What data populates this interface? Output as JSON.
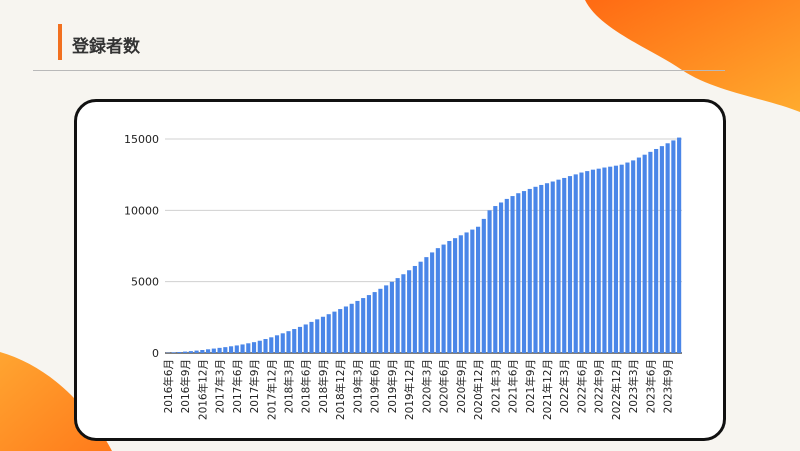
{
  "title": "登録者数",
  "theme": {
    "accent": "#f2701f",
    "bar_color": "#4a86e8",
    "blob_color": "#ff8a1d"
  },
  "chart_data": {
    "type": "bar",
    "title": "",
    "xlabel": "",
    "ylabel": "",
    "ylim": [
      0,
      15000
    ],
    "yticks": [
      0,
      5000,
      10000,
      15000
    ],
    "grid": true,
    "legend": "none",
    "x_tick_labels": [
      "2016年6月",
      "2016年9月",
      "2016年12月",
      "2017年3月",
      "2017年6月",
      "2017年9月",
      "2017年12月",
      "2018年3月",
      "2018年6月",
      "2018年9月",
      "2018年12月",
      "2019年3月",
      "2019年6月",
      "2019年9月",
      "2019年12月",
      "2020年3月",
      "2020年6月",
      "2020年9月",
      "2020年12月",
      "2021年3月",
      "2021年6月",
      "2021年9月",
      "2021年12月",
      "2022年3月",
      "2022年6月",
      "2022年9月",
      "2022年12月",
      "2023年3月",
      "2023年6月",
      "2023年9月"
    ],
    "categories": [
      "2016年6月",
      "2016年7月",
      "2016年8月",
      "2016年9月",
      "2016年10月",
      "2016年11月",
      "2016年12月",
      "2017年1月",
      "2017年2月",
      "2017年3月",
      "2017年4月",
      "2017年5月",
      "2017年6月",
      "2017年7月",
      "2017年8月",
      "2017年9月",
      "2017年10月",
      "2017年11月",
      "2017年12月",
      "2018年1月",
      "2018年2月",
      "2018年3月",
      "2018年4月",
      "2018年5月",
      "2018年6月",
      "2018年7月",
      "2018年8月",
      "2018年9月",
      "2018年10月",
      "2018年11月",
      "2018年12月",
      "2019年1月",
      "2019年2月",
      "2019年3月",
      "2019年4月",
      "2019年5月",
      "2019年6月",
      "2019年7月",
      "2019年8月",
      "2019年9月",
      "2019年10月",
      "2019年11月",
      "2019年12月",
      "2020年1月",
      "2020年2月",
      "2020年3月",
      "2020年4月",
      "2020年5月",
      "2020年6月",
      "2020年7月",
      "2020年8月",
      "2020年9月",
      "2020年10月",
      "2020年11月",
      "2020年12月",
      "2021年1月",
      "2021年2月",
      "2021年3月",
      "2021年4月",
      "2021年5月",
      "2021年6月",
      "2021年7月",
      "2021年8月",
      "2021年9月",
      "2021年10月",
      "2021年11月",
      "2021年12月",
      "2022年1月",
      "2022年2月",
      "2022年3月",
      "2022年4月",
      "2022年5月",
      "2022年6月",
      "2022年7月",
      "2022年8月",
      "2022年9月",
      "2022年10月",
      "2022年11月",
      "2022年12月",
      "2023年1月",
      "2023年2月",
      "2023年3月",
      "2023年4月",
      "2023年5月",
      "2023年6月",
      "2023年7月",
      "2023年8月",
      "2023年9月",
      "2023年10月",
      "2023年11月"
    ],
    "values": [
      20,
      45,
      70,
      100,
      130,
      170,
      210,
      260,
      310,
      360,
      410,
      470,
      530,
      600,
      680,
      760,
      860,
      980,
      1100,
      1240,
      1380,
      1530,
      1680,
      1830,
      2000,
      2180,
      2360,
      2540,
      2720,
      2900,
      3080,
      3260,
      3450,
      3650,
      3850,
      4060,
      4270,
      4500,
      4740,
      4990,
      5250,
      5520,
      5800,
      6100,
      6400,
      6720,
      7050,
      7350,
      7600,
      7850,
      8050,
      8250,
      8450,
      8650,
      8850,
      9400,
      10000,
      10300,
      10550,
      10800,
      11000,
      11200,
      11350,
      11500,
      11650,
      11780,
      11900,
      12020,
      12150,
      12270,
      12400,
      12520,
      12650,
      12750,
      12850,
      12920,
      13000,
      13060,
      13130,
      13200,
      13350,
      13500,
      13700,
      13900,
      14100,
      14300,
      14500,
      14700,
      14900,
      15100
    ]
  }
}
